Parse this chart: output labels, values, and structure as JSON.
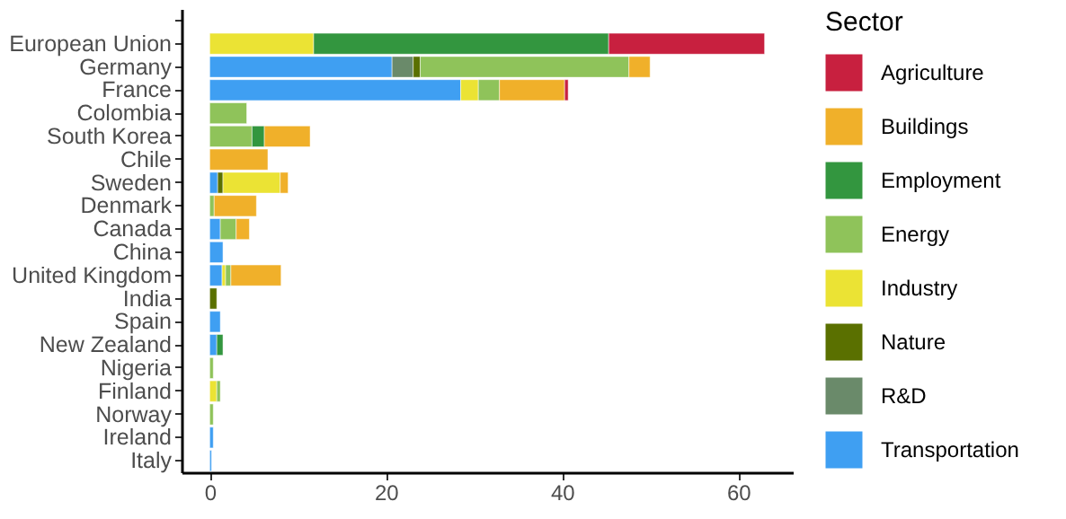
{
  "chart_data": {
    "type": "bar",
    "orientation": "horizontal",
    "stacked": true,
    "categories": [
      null,
      "European Union",
      "Germany",
      "France",
      "Colombia",
      "South Korea",
      "Chile",
      "Sweden",
      "Denmark",
      "Canada",
      "China",
      "United Kingdom",
      "India",
      "Spain",
      "New Zealand",
      "Nigeria",
      "Finland",
      "Norway",
      "Ireland",
      "Italy"
    ],
    "series": [
      {
        "name": "Transportation",
        "color": "#3f9ff2",
        "values": [
          null,
          null,
          20.7,
          28.5,
          null,
          null,
          null,
          0.9,
          null,
          1.2,
          1.5,
          1.4,
          null,
          1.2,
          0.8,
          null,
          null,
          null,
          0.4,
          0.2
        ]
      },
      {
        "name": "R&D",
        "color": "#6a8a6a",
        "values": [
          null,
          null,
          2.4,
          null,
          null,
          null,
          null,
          null,
          null,
          null,
          null,
          null,
          null,
          null,
          null,
          null,
          null,
          null,
          null,
          null
        ]
      },
      {
        "name": "Nature",
        "color": "#5a7000",
        "values": [
          null,
          null,
          0.8,
          null,
          null,
          null,
          null,
          0.6,
          null,
          null,
          null,
          null,
          0.8,
          null,
          null,
          null,
          null,
          null,
          null,
          null
        ]
      },
      {
        "name": "Industry",
        "color": "#ebe334",
        "values": [
          null,
          11.8,
          null,
          2.0,
          null,
          null,
          null,
          6.5,
          null,
          null,
          null,
          0.4,
          null,
          null,
          null,
          null,
          0.8,
          null,
          null,
          null
        ]
      },
      {
        "name": "Energy",
        "color": "#8fc35a",
        "values": [
          null,
          null,
          23.7,
          2.4,
          4.2,
          4.8,
          null,
          null,
          0.5,
          1.8,
          null,
          0.6,
          null,
          null,
          null,
          0.4,
          0.4,
          0.4,
          null,
          null
        ]
      },
      {
        "name": "Employment",
        "color": "#33963f",
        "values": [
          null,
          33.5,
          null,
          null,
          null,
          1.4,
          null,
          null,
          null,
          null,
          null,
          null,
          null,
          null,
          0.7,
          null,
          null,
          null,
          null,
          null
        ]
      },
      {
        "name": "Buildings",
        "color": "#f0b02a",
        "values": [
          null,
          null,
          2.4,
          7.4,
          null,
          5.2,
          6.6,
          0.9,
          4.8,
          1.5,
          null,
          5.7,
          null,
          null,
          null,
          null,
          null,
          null,
          null,
          null
        ]
      },
      {
        "name": "Agriculture",
        "color": "#c8203f",
        "values": [
          null,
          17.7,
          null,
          0.4,
          null,
          null,
          null,
          null,
          null,
          null,
          null,
          null,
          null,
          null,
          null,
          null,
          null,
          null,
          null,
          null
        ]
      }
    ],
    "xlim": [
      -3.2,
      66.2
    ],
    "xticks": [
      0,
      20,
      40,
      60
    ],
    "legend_title": "Sector",
    "legend": "right",
    "grid": false
  }
}
